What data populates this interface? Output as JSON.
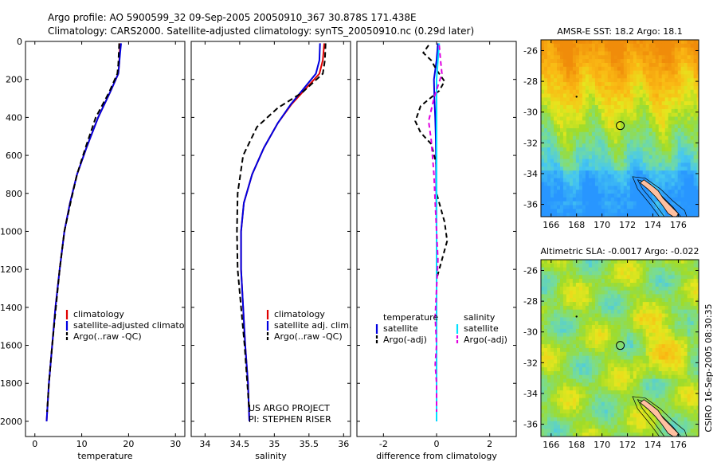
{
  "header": {
    "line1": "Argo profile: AO 5900599_32 09-Sep-2005 20050910_367 30.878S 171.438E",
    "line2": "Climatology: CARS2000. Satellite-adjusted climatology: synTS_20050910.nc (0.29d later)"
  },
  "colors": {
    "climatology": "#e00000",
    "satellite": "#0000e0",
    "argo": "#000000",
    "argo_adj": "#e000e0",
    "satellite_sal": "#00e0ff"
  },
  "chart_data": [
    {
      "type": "line",
      "xlabel": "temperature",
      "ylabel": "",
      "xlim": [
        -2,
        32
      ],
      "ylim": [
        2080,
        0
      ],
      "xticks": [
        0,
        10,
        20,
        30
      ],
      "yticks": [
        0,
        200,
        400,
        600,
        800,
        1000,
        1200,
        1400,
        1600,
        1800,
        2000
      ],
      "legend": [
        "climatology",
        "satellite-adjusted climatology",
        "Argo(..raw -QC)"
      ],
      "series": [
        {
          "name": "climatology",
          "color": "climatology",
          "dash": "",
          "points": [
            [
              18.2,
              10
            ],
            [
              18.1,
              60
            ],
            [
              18.0,
              120
            ],
            [
              17.8,
              170
            ],
            [
              16.0,
              270
            ],
            [
              13.5,
              400
            ],
            [
              11.0,
              560
            ],
            [
              9.0,
              700
            ],
            [
              7.5,
              850
            ],
            [
              6.3,
              1000
            ],
            [
              5.3,
              1200
            ],
            [
              4.4,
              1400
            ],
            [
              3.7,
              1600
            ],
            [
              3.0,
              1800
            ],
            [
              2.5,
              2000
            ]
          ]
        },
        {
          "name": "satellite-adjusted climatology",
          "color": "satellite",
          "dash": "",
          "points": [
            [
              18.4,
              10
            ],
            [
              18.2,
              60
            ],
            [
              18.0,
              120
            ],
            [
              17.8,
              170
            ],
            [
              16.0,
              270
            ],
            [
              13.5,
              400
            ],
            [
              11.0,
              560
            ],
            [
              9.0,
              700
            ],
            [
              7.5,
              850
            ],
            [
              6.3,
              1000
            ],
            [
              5.3,
              1200
            ],
            [
              4.4,
              1400
            ],
            [
              3.7,
              1600
            ],
            [
              3.0,
              1800
            ],
            [
              2.5,
              2000
            ]
          ]
        },
        {
          "name": "Argo(..raw -QC)",
          "color": "argo",
          "dash": "7,4",
          "points": [
            [
              18.0,
              10
            ],
            [
              17.9,
              60
            ],
            [
              17.8,
              120
            ],
            [
              17.6,
              170
            ],
            [
              15.8,
              270
            ],
            [
              13.0,
              400
            ],
            [
              10.8,
              560
            ],
            [
              9.0,
              700
            ],
            [
              7.6,
              850
            ],
            [
              6.3,
              1000
            ],
            [
              5.3,
              1200
            ],
            [
              4.5,
              1400
            ],
            [
              3.7,
              1600
            ],
            [
              3.0,
              1800
            ],
            [
              2.6,
              1950
            ]
          ]
        }
      ]
    },
    {
      "type": "line",
      "xlabel": "salinity",
      "ylabel": "",
      "xlim": [
        33.8,
        36.1
      ],
      "ylim": [
        2080,
        0
      ],
      "xticks": [
        34,
        34.5,
        35,
        35.5,
        36
      ],
      "yticks": [],
      "legend": [
        "climatology",
        "satellite adj. clim.",
        "Argo(..raw -QC)"
      ],
      "annotation": [
        "US ARGO PROJECT",
        "PI: STEPHEN RISER"
      ],
      "series": [
        {
          "name": "climatology",
          "color": "climatology",
          "dash": "",
          "points": [
            [
              35.72,
              10
            ],
            [
              35.7,
              100
            ],
            [
              35.65,
              170
            ],
            [
              35.45,
              250
            ],
            [
              35.25,
              330
            ],
            [
              35.05,
              430
            ],
            [
              34.85,
              560
            ],
            [
              34.68,
              700
            ],
            [
              34.56,
              850
            ],
            [
              34.52,
              1000
            ],
            [
              34.52,
              1200
            ],
            [
              34.55,
              1400
            ],
            [
              34.58,
              1600
            ],
            [
              34.62,
              1800
            ],
            [
              34.64,
              2000
            ]
          ]
        },
        {
          "name": "satellite adj. clim.",
          "color": "satellite",
          "dash": "",
          "points": [
            [
              35.66,
              10
            ],
            [
              35.65,
              100
            ],
            [
              35.6,
              170
            ],
            [
              35.42,
              250
            ],
            [
              35.24,
              330
            ],
            [
              35.05,
              430
            ],
            [
              34.85,
              560
            ],
            [
              34.68,
              700
            ],
            [
              34.56,
              850
            ],
            [
              34.52,
              1000
            ],
            [
              34.52,
              1200
            ],
            [
              34.55,
              1400
            ],
            [
              34.58,
              1600
            ],
            [
              34.62,
              1800
            ],
            [
              34.64,
              2000
            ]
          ]
        },
        {
          "name": "Argo(..raw -QC)",
          "color": "argo",
          "dash": "7,4",
          "points": [
            [
              35.74,
              10
            ],
            [
              35.73,
              100
            ],
            [
              35.7,
              170
            ],
            [
              35.4,
              270
            ],
            [
              35.05,
              350
            ],
            [
              34.75,
              450
            ],
            [
              34.55,
              600
            ],
            [
              34.47,
              800
            ],
            [
              34.46,
              1000
            ],
            [
              34.47,
              1200
            ],
            [
              34.52,
              1400
            ],
            [
              34.57,
              1600
            ],
            [
              34.61,
              1800
            ],
            [
              34.64,
              1950
            ]
          ]
        }
      ]
    },
    {
      "type": "line",
      "xlabel": "difference from climatology",
      "ylabel": "",
      "xlim": [
        -3.0,
        3.0
      ],
      "ylim": [
        2080,
        0
      ],
      "xticks": [
        -2,
        0,
        2
      ],
      "yticks": [],
      "legend_title_left": "temperature",
      "legend_title_right": "salinity",
      "legend": [
        "satellite",
        "Argo(-adj)",
        "satellite",
        "Argo(-adj)"
      ],
      "series": [
        {
          "name": "satellite",
          "color": "satellite",
          "dash": "",
          "points": [
            [
              0.05,
              10
            ],
            [
              0.0,
              100
            ],
            [
              -0.1,
              200
            ],
            [
              -0.08,
              300
            ],
            [
              -0.05,
              400
            ],
            [
              -0.03,
              500
            ],
            [
              -0.02,
              600
            ],
            [
              -0.01,
              800
            ],
            [
              0.0,
              1000
            ],
            [
              0.0,
              1200
            ],
            [
              0.0,
              1400
            ],
            [
              0.0,
              1600
            ],
            [
              0.0,
              1800
            ],
            [
              0.0,
              2000
            ]
          ]
        },
        {
          "name": "Argo(-adj)",
          "color": "argo",
          "dash": "6,4",
          "points": [
            [
              -0.3,
              20
            ],
            [
              -0.5,
              60
            ],
            [
              -0.2,
              100
            ],
            [
              0.0,
              150
            ],
            [
              0.3,
              210
            ],
            [
              0.1,
              260
            ],
            [
              -0.6,
              340
            ],
            [
              -0.8,
              420
            ],
            [
              -0.6,
              480
            ],
            [
              -0.2,
              540
            ],
            [
              0.0,
              650
            ],
            [
              0.0,
              800
            ],
            [
              0.3,
              950
            ],
            [
              0.4,
              1050
            ],
            [
              0.2,
              1150
            ],
            [
              0.0,
              1250
            ],
            [
              0.0,
              1500
            ],
            [
              0.0,
              1950
            ]
          ]
        },
        {
          "name": "satellite",
          "color": "satellite_sal",
          "dash": "",
          "points": [
            [
              0.1,
              10
            ],
            [
              0.05,
              100
            ],
            [
              0.0,
              200
            ],
            [
              0.0,
              400
            ],
            [
              0.0,
              600
            ],
            [
              0.0,
              800
            ],
            [
              0.0,
              1000
            ],
            [
              0.0,
              1200
            ],
            [
              0.0,
              1400
            ],
            [
              0.0,
              1600
            ],
            [
              0.0,
              1800
            ],
            [
              0.0,
              2000
            ]
          ]
        },
        {
          "name": "Argo(-adj)",
          "color": "argo_adj",
          "dash": "6,4",
          "points": [
            [
              0.1,
              20
            ],
            [
              0.15,
              100
            ],
            [
              0.2,
              170
            ],
            [
              -0.1,
              300
            ],
            [
              -0.3,
              420
            ],
            [
              -0.2,
              520
            ],
            [
              -0.1,
              700
            ],
            [
              -0.05,
              850
            ],
            [
              0.0,
              1000
            ],
            [
              0.05,
              1150
            ],
            [
              0.0,
              1300
            ],
            [
              -0.05,
              1450
            ],
            [
              0.0,
              1600
            ],
            [
              -0.05,
              1700
            ],
            [
              0.0,
              1800
            ],
            [
              0.0,
              1950
            ]
          ]
        }
      ]
    },
    {
      "type": "heatmap",
      "title": "AMSR-E SST: 18.2 Argo: 18.1",
      "xlim": [
        165.2,
        177.6
      ],
      "ylim": [
        -36.8,
        -25.3
      ],
      "xticks": [
        166,
        168,
        170,
        172,
        174,
        176
      ],
      "yticks": [
        -26,
        -28,
        -30,
        -32,
        -34,
        -36
      ],
      "profile_marker": [
        171.438,
        -30.878
      ]
    },
    {
      "type": "heatmap",
      "title": "Altimetric SLA: -0.0017 Argo: -0.022",
      "xlim": [
        165.2,
        177.6
      ],
      "ylim": [
        -36.8,
        -25.3
      ],
      "xticks": [
        166,
        168,
        170,
        172,
        174,
        176
      ],
      "yticks": [
        -26,
        -28,
        -30,
        -32,
        -34,
        -36
      ],
      "profile_marker": [
        171.438,
        -30.878
      ]
    }
  ],
  "side_text": "CSIRO 16-Sep-2005 08:30:35"
}
